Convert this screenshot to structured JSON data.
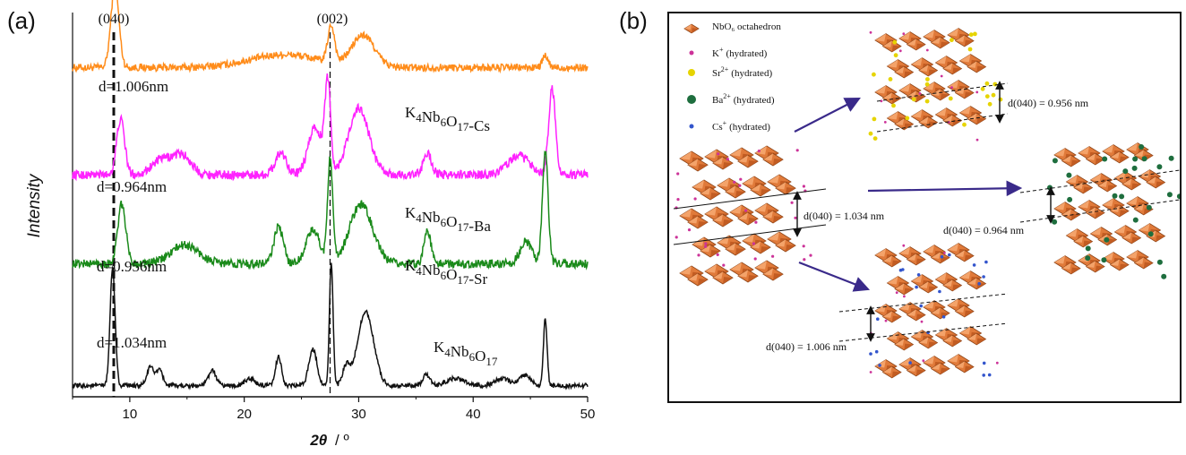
{
  "panel_a": {
    "label": "(a)",
    "peak_labels": [
      "(040)",
      "(002)"
    ],
    "chart_data": {
      "type": "line",
      "xlabel_main": "2θ",
      "xlabel_unit": "/ º",
      "ylabel": "Intensity",
      "xlim": [
        5,
        50
      ],
      "xticks": [
        10,
        20,
        30,
        40,
        50
      ],
      "yticks_shown": false,
      "reference_lines": [
        8.6,
        27.5
      ],
      "series": [
        {
          "name": "K4Nb6O17-Cs",
          "color": "#ff8c1a",
          "d_label": "d=1.006nm",
          "offset": 0.8,
          "baseline": 0.09,
          "noise": 0.01,
          "peaks": [
            [
              8.7,
              0.22,
              0.35
            ],
            [
              27.6,
              0.1,
              0.3
            ],
            [
              30.4,
              0.085,
              1.0
            ],
            [
              46.3,
              0.03,
              0.25
            ],
            [
              23.5,
              0.035,
              3.0
            ]
          ]
        },
        {
          "name": "K4Nb6O17-Ba",
          "color": "#ff22ff",
          "d_label": "d=0.964nm",
          "offset": 0.55,
          "baseline": 0.05,
          "noise": 0.012,
          "peaks": [
            [
              9.2,
              0.15,
              0.35
            ],
            [
              12.8,
              0.04,
              0.9
            ],
            [
              14.6,
              0.05,
              0.8
            ],
            [
              23.2,
              0.06,
              0.5
            ],
            [
              26.2,
              0.13,
              0.6
            ],
            [
              27.3,
              0.24,
              0.25
            ],
            [
              30.0,
              0.18,
              0.9
            ],
            [
              36.0,
              0.06,
              0.35
            ],
            [
              44.0,
              0.05,
              1.0
            ],
            [
              46.9,
              0.23,
              0.3
            ]
          ]
        },
        {
          "name": "K4Nb6O17-Sr",
          "color": "#1a8a1a",
          "d_label": "d=0.956nm",
          "offset": 0.32,
          "baseline": 0.04,
          "noise": 0.012,
          "peaks": [
            [
              9.3,
              0.16,
              0.35
            ],
            [
              14.8,
              0.05,
              1.2
            ],
            [
              23.0,
              0.1,
              0.4
            ],
            [
              26.0,
              0.09,
              0.6
            ],
            [
              27.5,
              0.28,
              0.22
            ],
            [
              30.2,
              0.16,
              1.0
            ],
            [
              36.0,
              0.09,
              0.3
            ],
            [
              44.6,
              0.06,
              0.5
            ],
            [
              46.3,
              0.3,
              0.25
            ]
          ]
        },
        {
          "name": "K4Nb6O17",
          "color": "#111111",
          "d_label": "d=1.034nm",
          "offset": 0.02,
          "baseline": 0.01,
          "noise": 0.006,
          "peaks": [
            [
              8.5,
              0.32,
              0.22
            ],
            [
              11.8,
              0.05,
              0.3
            ],
            [
              12.6,
              0.04,
              0.3
            ],
            [
              17.2,
              0.04,
              0.35
            ],
            [
              20.5,
              0.02,
              0.4
            ],
            [
              23.0,
              0.08,
              0.25
            ],
            [
              26.0,
              0.1,
              0.35
            ],
            [
              27.6,
              0.33,
              0.16
            ],
            [
              28.9,
              0.05,
              0.3
            ],
            [
              30.6,
              0.2,
              0.7
            ],
            [
              35.9,
              0.03,
              0.3
            ],
            [
              38.5,
              0.02,
              0.8
            ],
            [
              42.5,
              0.02,
              0.6
            ],
            [
              44.5,
              0.03,
              0.5
            ],
            [
              46.3,
              0.18,
              0.16
            ]
          ]
        }
      ]
    }
  },
  "panel_b": {
    "label": "(b)",
    "legend": [
      {
        "label": "NbO₆  octahedron",
        "color": "#e07a3a",
        "kind": "octahedron"
      },
      {
        "ion": "K",
        "sup": "+",
        "suffix": "(hydrated)",
        "color": "#cc3399"
      },
      {
        "ion": "Sr",
        "sup": "2+",
        "suffix": "(hydrated)",
        "color": "#e6d400"
      },
      {
        "ion": "Ba",
        "sup": "2+",
        "suffix": "(hydrated)",
        "color": "#1e6e3e"
      },
      {
        "ion": "Cs",
        "sup": "+",
        "suffix": "(hydrated)",
        "color": "#3355cc"
      }
    ],
    "spacings": {
      "center": "d(040) = 1.034 nm",
      "sr": "d(040) = 0.956 nm",
      "ba": "d(040) = 0.964 nm",
      "cs": "d(040) = 1.006 nm"
    },
    "arrow_color": "#3a2a8a",
    "octahedron_color": "#e07a3a"
  }
}
